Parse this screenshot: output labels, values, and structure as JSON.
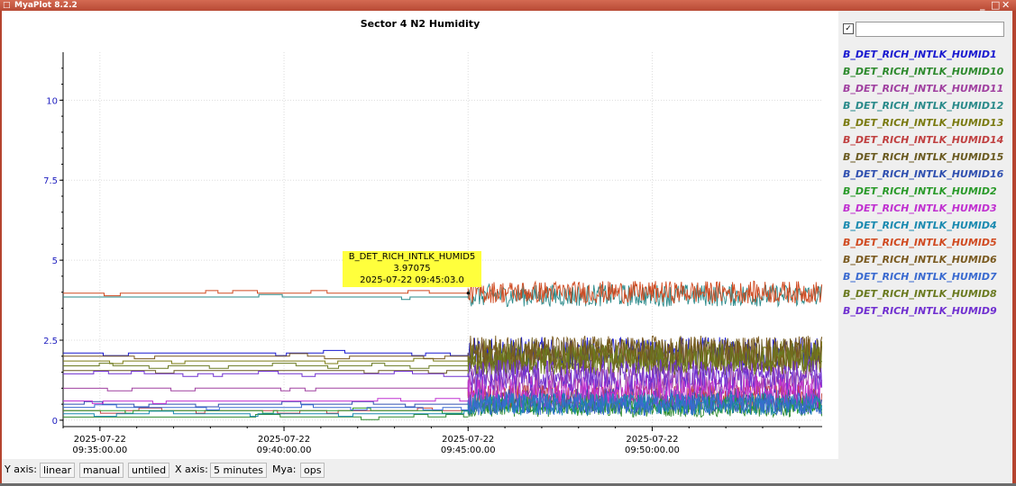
{
  "window": {
    "title": "MyaPlot 8.2.2",
    "controls": {
      "minimize": "_",
      "maximize": "□",
      "close": "✕"
    }
  },
  "chart_data": {
    "type": "line",
    "title": "Sector 4 N2 Humidity",
    "ylim": [
      -0.2,
      11.5
    ],
    "y_ticks": [
      {
        "value": 0,
        "label": "0"
      },
      {
        "value": 2.5,
        "label": "2.5"
      },
      {
        "value": 5,
        "label": "5"
      },
      {
        "value": 7.5,
        "label": "7.5"
      },
      {
        "value": 10,
        "label": "10"
      }
    ],
    "x_range": [
      "2025-07-22 09:34:00",
      "2025-07-22 09:54:37"
    ],
    "x_ticks": [
      {
        "value": "2025-07-22 09:35:00",
        "date": "2025-07-22",
        "time": "09:35:00.00"
      },
      {
        "value": "2025-07-22 09:40:00",
        "date": "2025-07-22",
        "time": "09:40:00.00"
      },
      {
        "value": "2025-07-22 09:45:00",
        "date": "2025-07-22",
        "time": "09:45:00.00"
      },
      {
        "value": "2025-07-22 09:50:00",
        "date": "2025-07-22",
        "time": "09:50:00.00"
      }
    ],
    "grid": true,
    "legend_position": "right",
    "series": [
      {
        "name": "B_DET_RICH_INTLK_HUMID1",
        "color": "#1a1ad0",
        "before": 2.1,
        "after_mean": 2.1,
        "after_amp": 0.5
      },
      {
        "name": "B_DET_RICH_INTLK_HUMID10",
        "color": "#2e8a2e",
        "before": 0.1,
        "after_mean": 0.4,
        "after_amp": 0.3
      },
      {
        "name": "B_DET_RICH_INTLK_HUMID11",
        "color": "#a040a0",
        "before": 1.0,
        "after_mean": 1.2,
        "after_amp": 0.5
      },
      {
        "name": "B_DET_RICH_INTLK_HUMID12",
        "color": "#2a8a8a",
        "before": 3.85,
        "after_mean": 3.9,
        "after_amp": 0.35
      },
      {
        "name": "B_DET_RICH_INTLK_HUMID13",
        "color": "#7a7a10",
        "before": 1.85,
        "after_mean": 2.0,
        "after_amp": 0.5
      },
      {
        "name": "B_DET_RICH_INTLK_HUMID14",
        "color": "#c04040",
        "before": 0.3,
        "after_mean": 0.7,
        "after_amp": 0.4
      },
      {
        "name": "B_DET_RICH_INTLK_HUMID15",
        "color": "#6a5a20",
        "before": 1.55,
        "after_mean": 2.0,
        "after_amp": 0.6
      },
      {
        "name": "B_DET_RICH_INTLK_HUMID16",
        "color": "#3050b0",
        "before": 0.5,
        "after_mean": 0.6,
        "after_amp": 0.4
      },
      {
        "name": "B_DET_RICH_INTLK_HUMID2",
        "color": "#2a9a2a",
        "before": 0.3,
        "after_mean": 0.5,
        "after_amp": 0.3
      },
      {
        "name": "B_DET_RICH_INTLK_HUMID3",
        "color": "#c030d0",
        "before": 0.6,
        "after_mean": 0.9,
        "after_amp": 0.5
      },
      {
        "name": "B_DET_RICH_INTLK_HUMID4",
        "color": "#1a8ab0",
        "before": 0.2,
        "after_mean": 0.5,
        "after_amp": 0.35
      },
      {
        "name": "B_DET_RICH_INTLK_HUMID5",
        "color": "#d04a20",
        "before": 3.97,
        "after_mean": 4.0,
        "after_amp": 0.35
      },
      {
        "name": "B_DET_RICH_INTLK_HUMID6",
        "color": "#7a5a20",
        "before": 2.0,
        "after_mean": 2.1,
        "after_amp": 0.55
      },
      {
        "name": "B_DET_RICH_INTLK_HUMID7",
        "color": "#3a6ad0",
        "before": 0.4,
        "after_mean": 0.5,
        "after_amp": 0.35
      },
      {
        "name": "B_DET_RICH_INTLK_HUMID8",
        "color": "#6a7a20",
        "before": 1.7,
        "after_mean": 1.9,
        "after_amp": 0.5
      },
      {
        "name": "B_DET_RICH_INTLK_HUMID9",
        "color": "#7030d0",
        "before": 1.45,
        "after_mean": 1.4,
        "after_amp": 0.5
      }
    ],
    "tooltip": {
      "series": "B_DET_RICH_INTLK_HUMID5",
      "value": "3.97075",
      "time": "2025-07-22 09:45:03.0"
    }
  },
  "legend": {
    "select_all_checked": "✓",
    "filter_value": ""
  },
  "statusbar": {
    "y_axis_label": "Y axis:",
    "y_scale": "linear",
    "y_mode": "manual",
    "y_title": "untiled",
    "x_axis_label": "X axis:",
    "x_span": "5 minutes",
    "mya_label": "Mya:",
    "mya_value": "ops"
  }
}
